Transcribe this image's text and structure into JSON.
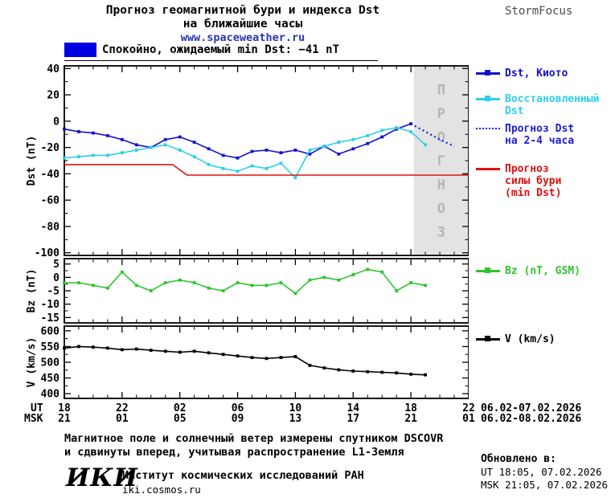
{
  "header": {
    "title_line1": "Прогноз геомагнитной бури и индекса Dst",
    "title_line2": "на ближайшие часы",
    "site_link": "www.spaceweather.ru",
    "brand": "StormFocus"
  },
  "banner": {
    "text": "Спокойно, ожидаемый min Dst: −41 nT",
    "swatch_color": "#0000e0"
  },
  "forecast_overlay": {
    "label": "ПРОГНОЗ",
    "region_color": "#e3e3e3",
    "text_color": "#b5b5b5"
  },
  "legend": {
    "dst_kyoto": {
      "lines": [
        "Dst, Киото"
      ],
      "color": "#1212cc",
      "marker": "square",
      "style": "solid"
    },
    "dst_restored": {
      "lines": [
        "Восстановленный",
        "Dst"
      ],
      "color": "#2ed0e8",
      "marker": "square",
      "style": "solid"
    },
    "dst_forecast": {
      "lines": [
        "Прогноз Dst",
        "на 2-4 часа"
      ],
      "color": "#1c1cdd",
      "marker": "none",
      "style": "dotted"
    },
    "storm_forecast": {
      "lines": [
        "Прогноз",
        "силы бури",
        "(min Dst)"
      ],
      "color": "#dd1111",
      "marker": "none",
      "style": "solid"
    },
    "bz": {
      "lines": [
        "Bz (nT, GSM)"
      ],
      "color": "#2fc42f",
      "marker": "square",
      "style": "solid"
    },
    "v": {
      "lines": [
        "V (km/s)"
      ],
      "color": "#000000",
      "marker": "square",
      "style": "solid"
    }
  },
  "xaxis": {
    "ut_label": "UT",
    "msk_label": "MSK",
    "ut_ticks": [
      "18",
      "22",
      "02",
      "06",
      "10",
      "14",
      "18",
      "22"
    ],
    "msk_ticks": [
      "21",
      "01",
      "05",
      "09",
      "13",
      "17",
      "21",
      "01"
    ],
    "ut_dates": "06.02-07.02.2026",
    "msk_dates": "06.02-08.02.2026"
  },
  "chart_data": [
    {
      "type": "line",
      "ylabel": "Dst (nT)",
      "ylim": [
        -102,
        42
      ],
      "yticks": [
        40,
        20,
        0,
        -20,
        -40,
        -60,
        -80,
        -100
      ],
      "yminor": 10,
      "xlim": [
        0,
        28
      ],
      "x_description": "hours, x=0 is 18:00 UT 06.02.2026, major ticks every 4 h",
      "forecast_region": [
        24.2,
        28
      ],
      "series": [
        {
          "name": "Dst, Киото",
          "color": "#1212cc",
          "marker": "square",
          "x": [
            0,
            1,
            2,
            3,
            4,
            5,
            6,
            7,
            8,
            9,
            10,
            11,
            12,
            13,
            14,
            15,
            16,
            17,
            18,
            19,
            20,
            21,
            22,
            23,
            24
          ],
          "y": [
            -6,
            -8,
            -9,
            -11,
            -14,
            -18,
            -20,
            -14,
            -12,
            -16,
            -21,
            -26,
            -28,
            -23,
            -22,
            -24,
            -22,
            -25,
            -19,
            -25,
            -21,
            -17,
            -12,
            -6,
            -2
          ]
        },
        {
          "name": "Восстановленный Dst",
          "color": "#2ed0e8",
          "marker": "square",
          "x": [
            0,
            1,
            2,
            3,
            4,
            5,
            6,
            7,
            8,
            9,
            10,
            11,
            12,
            13,
            14,
            15,
            16,
            17,
            18,
            19,
            20,
            21,
            22,
            23,
            24,
            25
          ],
          "y": [
            -28,
            -27,
            -26,
            -26,
            -24,
            -22,
            -20,
            -18,
            -22,
            -27,
            -33,
            -36,
            -38,
            -34,
            -36,
            -32,
            -43,
            -22,
            -19,
            -16,
            -14,
            -11,
            -7,
            -5,
            -8,
            -18
          ]
        },
        {
          "name": "Прогноз Dst на 2-4 часа",
          "color": "#1c1cdd",
          "style": "dotted",
          "x": [
            24,
            25,
            26,
            27
          ],
          "y": [
            -2,
            -8,
            -14,
            -19
          ]
        },
        {
          "name": "Прогноз силы бури (min Dst)",
          "color": "#dd1111",
          "x": [
            0,
            7.5,
            8.5,
            28
          ],
          "y": [
            -33,
            -33,
            -41,
            -41
          ]
        }
      ]
    },
    {
      "type": "line",
      "ylabel": "Bz (nT)",
      "ylim": [
        -17,
        7
      ],
      "yticks": [
        5,
        0,
        -5,
        -10,
        -15
      ],
      "yminor": 2.5,
      "xlim": [
        0,
        28
      ],
      "series": [
        {
          "name": "Bz (nT, GSM)",
          "color": "#2fc42f",
          "marker": "square",
          "x": [
            0,
            1,
            2,
            3,
            4,
            5,
            6,
            7,
            8,
            9,
            10,
            11,
            12,
            13,
            14,
            15,
            16,
            17,
            18,
            19,
            20,
            21,
            22,
            23,
            24,
            25
          ],
          "y": [
            -2,
            -2,
            -3,
            -4,
            2,
            -3,
            -5,
            -2,
            -1,
            -2,
            -4,
            -5,
            -2,
            -3,
            -3,
            -2,
            -6,
            -1,
            0,
            -1,
            1,
            3,
            2,
            -5,
            -2,
            -3
          ]
        }
      ]
    },
    {
      "type": "line",
      "ylabel": "V (km/s)",
      "ylim": [
        385,
        615
      ],
      "yticks": [
        600,
        550,
        500,
        450,
        400
      ],
      "yminor": 25,
      "xlim": [
        0,
        28
      ],
      "series": [
        {
          "name": "V (km/s)",
          "color": "#000000",
          "marker": "square",
          "x": [
            0,
            1,
            2,
            3,
            4,
            5,
            6,
            7,
            8,
            9,
            10,
            11,
            12,
            13,
            14,
            15,
            16,
            17,
            18,
            19,
            20,
            21,
            22,
            23,
            24,
            25
          ],
          "y": [
            545,
            550,
            548,
            545,
            540,
            542,
            538,
            535,
            532,
            535,
            530,
            525,
            520,
            515,
            512,
            515,
            518,
            490,
            482,
            476,
            472,
            470,
            468,
            466,
            462,
            460
          ]
        }
      ]
    }
  ],
  "footer": {
    "note_line1": "Магнитное поле и солнечный ветер измерены спутником DSCOVR",
    "note_line2": "и сдвинуты вперед, учитывая распространение L1-Земля",
    "updated_label": "Обновлено в:",
    "updated_ut": "UT  18:05, 07.02.2026",
    "updated_msk": "MSK 21:05, 07.02.2026",
    "org_logo": "ИКИ",
    "org_name": "Институт космических исследований РАН",
    "org_site": "iki.cosmos.ru"
  }
}
